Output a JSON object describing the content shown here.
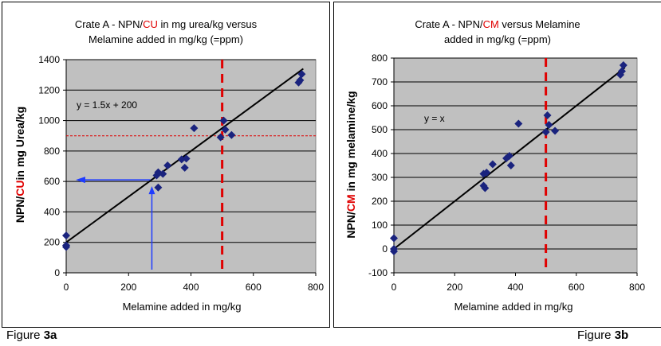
{
  "charts": [
    {
      "title_parts": [
        "Crate A - NPN/",
        "CU",
        " in mg urea/kg versus",
        "Melamine added in mg/kg (=ppm)"
      ],
      "ylabel_parts": [
        "NPN/",
        "CU",
        "in mg Urea/kg"
      ],
      "xlabel": "Melamine added in mg/kg",
      "equation": "y = 1.5x + 200",
      "caption_prefix": "Figure ",
      "caption_num": "3a"
    },
    {
      "title_parts": [
        "Crate A - NPN/",
        "CM",
        " versus Melamine",
        "added in mg/kg (=ppm)"
      ],
      "ylabel_parts": [
        "NPN/",
        "CM",
        " in mg melamine/kg"
      ],
      "xlabel": "Melamine added in mg/kg",
      "equation": "y = x",
      "caption_prefix": "Figure  ",
      "caption_num": "3b"
    }
  ],
  "colors": {
    "plot_bg": "#c0c0c0",
    "marker": "#1a237e",
    "highlight": "#e00000",
    "arrow": "#1f3cff"
  },
  "chart_data": [
    {
      "type": "scatter",
      "x_ticks": [
        0,
        200,
        400,
        600,
        800
      ],
      "y_ticks": [
        0,
        200,
        400,
        600,
        800,
        1000,
        1200,
        1400
      ],
      "xlim": [
        0,
        800
      ],
      "ylim": [
        0,
        1400
      ],
      "grid": true,
      "series": [
        {
          "points": [
            [
              0,
              170
            ],
            [
              0,
              180
            ],
            [
              0,
              245
            ],
            [
              295,
              560
            ],
            [
              290,
              640
            ],
            [
              295,
              660
            ],
            [
              310,
              650
            ],
            [
              325,
              705
            ],
            [
              370,
              745
            ],
            [
              380,
              690
            ],
            [
              385,
              750
            ],
            [
              410,
              950
            ],
            [
              495,
              890
            ],
            [
              505,
              1000
            ],
            [
              510,
              940
            ],
            [
              530,
              905
            ],
            [
              745,
              1250
            ],
            [
              750,
              1265
            ],
            [
              755,
              1305
            ]
          ]
        }
      ],
      "trendline": {
        "slope": 1.5,
        "intercept": 200
      },
      "annotations": {
        "vline_x": 500,
        "hline_y": 900,
        "arrow_x": 290,
        "arrow_y": 600
      }
    },
    {
      "type": "scatter",
      "x_ticks": [
        0,
        200,
        400,
        600,
        800
      ],
      "y_ticks": [
        -100,
        0,
        100,
        200,
        300,
        400,
        500,
        600,
        700,
        800
      ],
      "xlim": [
        0,
        800
      ],
      "ylim": [
        -100,
        800
      ],
      "grid": true,
      "series": [
        {
          "points": [
            [
              0,
              -10
            ],
            [
              0,
              0
            ],
            [
              0,
              45
            ],
            [
              295,
              265
            ],
            [
              300,
              255
            ],
            [
              295,
              315
            ],
            [
              305,
              320
            ],
            [
              325,
              355
            ],
            [
              370,
              380
            ],
            [
              380,
              390
            ],
            [
              385,
              350
            ],
            [
              410,
              525
            ],
            [
              500,
              490
            ],
            [
              505,
              560
            ],
            [
              510,
              520
            ],
            [
              530,
              495
            ],
            [
              745,
              730
            ],
            [
              750,
              745
            ],
            [
              755,
              770
            ]
          ]
        }
      ],
      "trendline": {
        "slope": 1,
        "intercept": 0
      },
      "annotations": {
        "vline_x": 500
      }
    }
  ]
}
